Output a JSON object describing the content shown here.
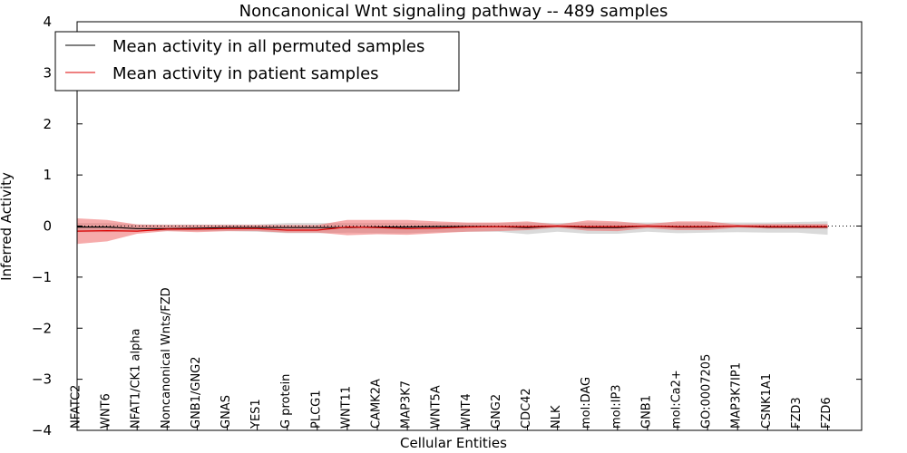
{
  "chart_data": {
    "type": "line",
    "title": "Noncanonical Wnt signaling pathway -- 489 samples",
    "xlabel": "Cellular Entities",
    "ylabel": "Inferred Activity",
    "ylim": [
      -4,
      4
    ],
    "yticks": [
      "−4",
      "−3",
      "−2",
      "−1",
      "0",
      "1",
      "2",
      "3",
      "4"
    ],
    "grid": false,
    "legend_position": "top-left",
    "categories": [
      "NFATC2",
      "WNT6",
      "NFAT1/CK1 alpha",
      "Noncanonical Wnts/FZD",
      "GNB1/GNG2",
      "GNAS",
      "YES1",
      "G protein",
      "PLCG1",
      "WNT11",
      "CAMK2A",
      "MAP3K7",
      "WNT5A",
      "WNT4",
      "GNG2",
      "CDC42",
      "NLK",
      "mol:DAG",
      "mol:IP3",
      "GNB1",
      "mol:Ca2+",
      "GO:0007205",
      "MAP3K7IP1",
      "CSNK1A1",
      "FZD3",
      "FZD6"
    ],
    "series": [
      {
        "name": "Mean activity in all permuted samples",
        "color": "#000000",
        "values": [
          -0.02,
          -0.02,
          -0.05,
          -0.05,
          -0.04,
          -0.03,
          -0.03,
          -0.03,
          -0.03,
          -0.03,
          -0.02,
          -0.02,
          -0.01,
          -0.01,
          -0.01,
          -0.03,
          0.0,
          -0.03,
          -0.03,
          0.0,
          -0.02,
          -0.02,
          0.0,
          -0.02,
          -0.02,
          -0.02
        ],
        "band_lower": [
          -0.12,
          -0.12,
          -0.1,
          -0.1,
          -0.1,
          -0.1,
          -0.11,
          -0.14,
          -0.14,
          -0.13,
          -0.14,
          -0.14,
          -0.12,
          -0.11,
          -0.11,
          -0.16,
          -0.11,
          -0.15,
          -0.15,
          -0.11,
          -0.14,
          -0.13,
          -0.12,
          -0.13,
          -0.13,
          -0.17
        ],
        "band_upper": [
          0.06,
          0.06,
          0.03,
          0.03,
          0.03,
          0.03,
          0.03,
          0.06,
          0.06,
          0.06,
          0.06,
          0.06,
          0.06,
          0.06,
          0.06,
          0.07,
          0.06,
          0.07,
          0.07,
          0.07,
          0.07,
          0.07,
          0.07,
          0.07,
          0.08,
          0.09
        ],
        "band_color": "#bbbbbb"
      },
      {
        "name": "Mean activity in patient samples",
        "color": "#dd0000",
        "values": [
          -0.1,
          -0.09,
          -0.1,
          -0.06,
          -0.06,
          -0.05,
          -0.05,
          -0.08,
          -0.08,
          -0.02,
          -0.03,
          -0.05,
          -0.04,
          -0.02,
          -0.01,
          -0.01,
          0.0,
          -0.01,
          -0.01,
          0.0,
          -0.01,
          -0.01,
          0.0,
          -0.01,
          -0.01,
          -0.01
        ],
        "band_lower": [
          -0.35,
          -0.3,
          -0.15,
          -0.1,
          -0.12,
          -0.1,
          -0.1,
          -0.13,
          -0.13,
          -0.18,
          -0.16,
          -0.17,
          -0.14,
          -0.11,
          -0.1,
          -0.08,
          -0.03,
          -0.09,
          -0.1,
          -0.04,
          -0.08,
          -0.08,
          -0.03,
          -0.05,
          -0.05,
          -0.05
        ],
        "band_upper": [
          0.15,
          0.12,
          0.03,
          0.02,
          0.02,
          0.02,
          0.02,
          0.02,
          0.02,
          0.12,
          0.12,
          0.12,
          0.09,
          0.07,
          0.07,
          0.09,
          0.03,
          0.11,
          0.09,
          0.04,
          0.09,
          0.09,
          0.03,
          0.04,
          0.04,
          0.04
        ],
        "band_color": "#ee6666"
      }
    ],
    "reference_line": {
      "y": 0,
      "style": "dotted"
    }
  }
}
